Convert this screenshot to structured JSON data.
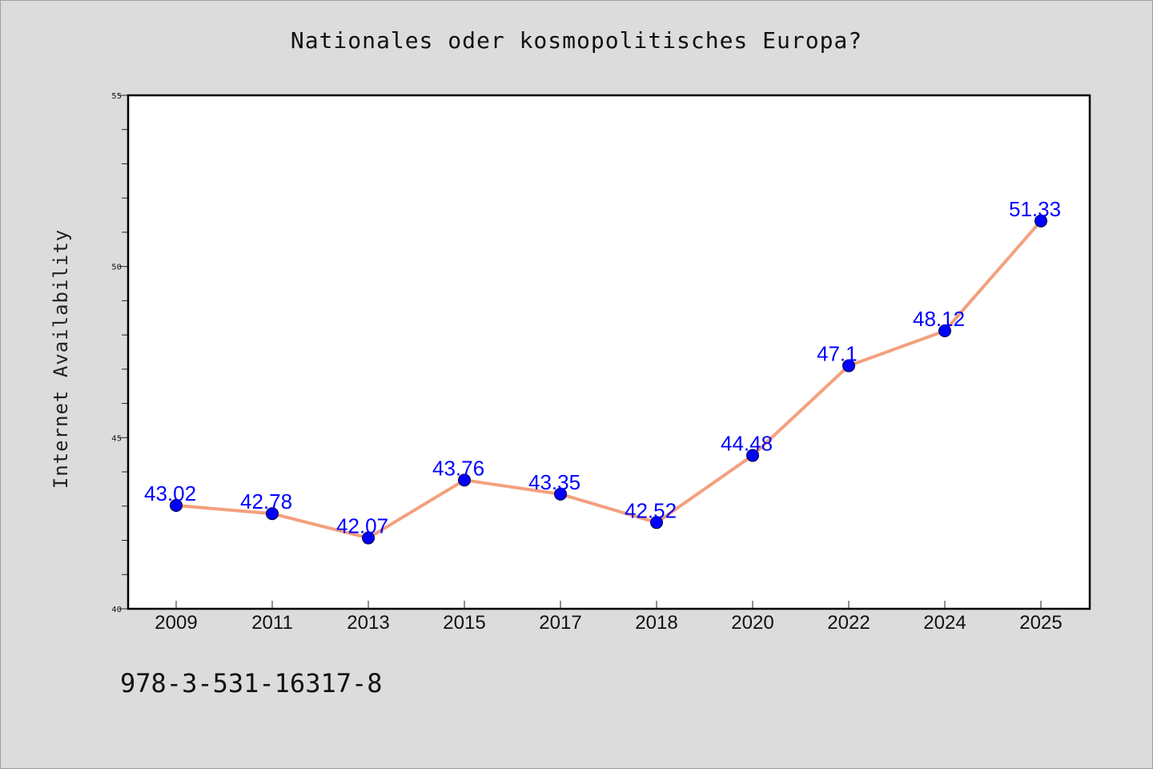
{
  "chart_data": {
    "type": "line",
    "title": "Nationales oder kosmopolitisches Europa?",
    "ylabel": "Internet Availability",
    "xlabel": "",
    "categories": [
      "2009",
      "2011",
      "2013",
      "2015",
      "2017",
      "2018",
      "2020",
      "2022",
      "2024",
      "2025"
    ],
    "values": [
      43.02,
      42.78,
      42.07,
      43.76,
      43.35,
      42.52,
      44.48,
      47.1,
      48.12,
      51.33
    ],
    "data_labels": [
      "43.02",
      "42.78",
      "42.07",
      "43.76",
      "43.35",
      "42.52",
      "44.48",
      "47.1",
      "48.12",
      "51.33"
    ],
    "ylim": [
      40,
      55
    ],
    "yticks": [
      "40",
      "45",
      "50",
      "55"
    ],
    "grid": false,
    "line_color": "#f4a07e",
    "marker_color": "#0000ff",
    "label_color": "#0000ff"
  },
  "footer": {
    "code": "978-3-531-16317-8"
  }
}
